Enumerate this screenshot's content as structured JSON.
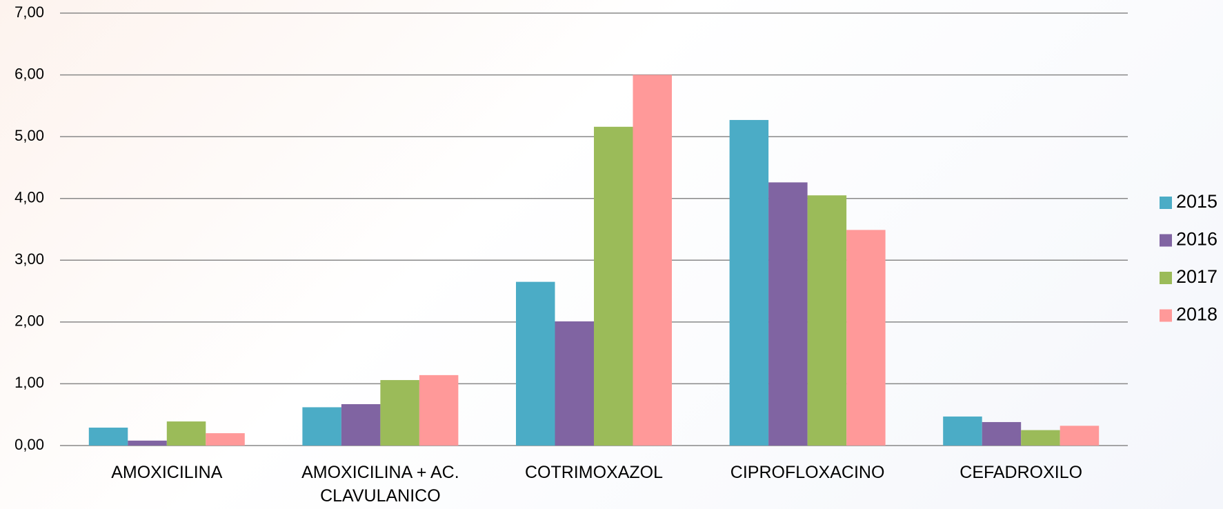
{
  "chart_data": {
    "type": "bar",
    "categories": [
      "AMOXICILINA",
      "AMOXICILINA + AC. CLAVULANICO",
      "COTRIMOXAZOL",
      "CIPROFLOXACINO",
      "CEFADROXILO"
    ],
    "series": [
      {
        "name": "2015",
        "color": "#4bacc6",
        "values": [
          0.29,
          0.62,
          2.65,
          5.27,
          0.47
        ]
      },
      {
        "name": "2016",
        "color": "#8064a2",
        "values": [
          0.08,
          0.67,
          2.01,
          4.26,
          0.38
        ]
      },
      {
        "name": "2017",
        "color": "#9bbb59",
        "values": [
          0.39,
          1.06,
          5.16,
          4.05,
          0.25
        ]
      },
      {
        "name": "2018",
        "color": "#ff9999",
        "values": [
          0.2,
          1.14,
          6.0,
          3.49,
          0.32
        ]
      }
    ],
    "ylim": [
      0,
      7
    ],
    "yticks": [
      {
        "value": 0,
        "label": "0,00"
      },
      {
        "value": 1,
        "label": "1,00"
      },
      {
        "value": 2,
        "label": "2,00"
      },
      {
        "value": 3,
        "label": "3,00"
      },
      {
        "value": 4,
        "label": "4,00"
      },
      {
        "value": 5,
        "label": "5,00"
      },
      {
        "value": 6,
        "label": "6,00"
      },
      {
        "value": 7,
        "label": "7,00"
      }
    ],
    "grid": true,
    "legend": "right"
  }
}
